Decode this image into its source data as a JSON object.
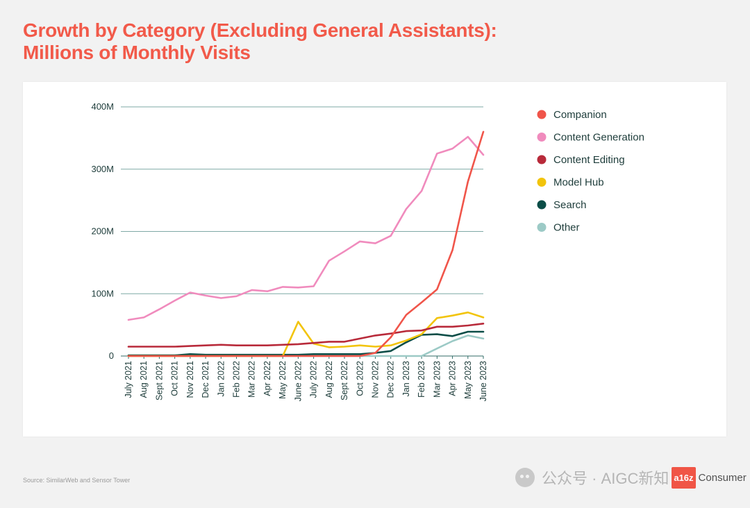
{
  "title_line1": "Growth by Category (Excluding General Assistants):",
  "title_line2": "Millions of Monthly Visits",
  "source": "Source: SimilarWeb and Sensor Tower",
  "watermark": {
    "text": "公众号 · AIGC新知",
    "badge": "a16z",
    "consumer": "Consumer"
  },
  "chart_data": {
    "type": "line",
    "title": "Growth by Category (Excluding General Assistants): Millions of Monthly Visits",
    "xlabel": "",
    "ylabel": "",
    "ylim": [
      0,
      400
    ],
    "yticks": [
      0,
      100,
      200,
      300,
      400
    ],
    "ytick_labels": [
      "0",
      "100M",
      "200M",
      "300M",
      "400M"
    ],
    "grid": true,
    "legend_position": "right",
    "categories": [
      "July 2021",
      "Aug 2021",
      "Sept 2021",
      "Oct 2021",
      "Nov 2021",
      "Dec 2021",
      "Jan 2022",
      "Feb 2022",
      "Mar 2022",
      "Apr 2022",
      "May 2022",
      "June 2022",
      "July 2022",
      "Aug 2022",
      "Sept 2022",
      "Oct 2022",
      "Nov 2022",
      "Dec 2022",
      "Jan 2023",
      "Feb 2023",
      "Mar 2023",
      "Apr 2023",
      "May 2023",
      "June 2023"
    ],
    "series": [
      {
        "name": "Companion",
        "color": "#f0554a",
        "values": [
          0,
          0,
          0,
          0,
          0,
          0,
          0,
          0,
          0,
          0,
          0,
          0,
          0,
          0,
          0,
          0,
          5,
          30,
          66,
          86,
          107,
          170,
          280,
          360
        ]
      },
      {
        "name": "Content Generation",
        "color": "#f08bbd",
        "values": [
          58,
          62,
          75,
          89,
          102,
          97,
          93,
          96,
          106,
          104,
          111,
          110,
          112,
          153,
          168,
          184,
          181,
          193,
          236,
          265,
          325,
          333,
          352,
          323
        ]
      },
      {
        "name": "Content Editing",
        "color": "#b82a3a",
        "values": [
          15,
          15,
          15,
          15,
          16,
          17,
          18,
          17,
          17,
          17,
          18,
          19,
          21,
          23,
          23,
          28,
          33,
          36,
          40,
          41,
          47,
          47,
          49,
          52
        ]
      },
      {
        "name": "Model Hub",
        "color": "#f2c40c",
        "values": [
          0,
          0,
          0,
          0,
          0,
          0,
          0,
          0,
          0,
          0,
          0,
          55,
          20,
          14,
          15,
          17,
          15,
          17,
          25,
          35,
          61,
          65,
          70,
          62
        ]
      },
      {
        "name": "Search",
        "color": "#0b4d47",
        "values": [
          1,
          1,
          1,
          1,
          3,
          2,
          2,
          2,
          2,
          2,
          2,
          2,
          3,
          3,
          3,
          3,
          5,
          8,
          22,
          34,
          35,
          32,
          39,
          39
        ]
      },
      {
        "name": "Other",
        "color": "#9ccac6",
        "values": [
          0,
          0,
          0,
          0,
          0,
          0,
          0,
          0,
          0,
          0,
          0,
          0,
          0,
          0,
          0,
          0,
          0,
          0,
          0,
          0,
          12,
          24,
          33,
          28
        ]
      }
    ]
  }
}
